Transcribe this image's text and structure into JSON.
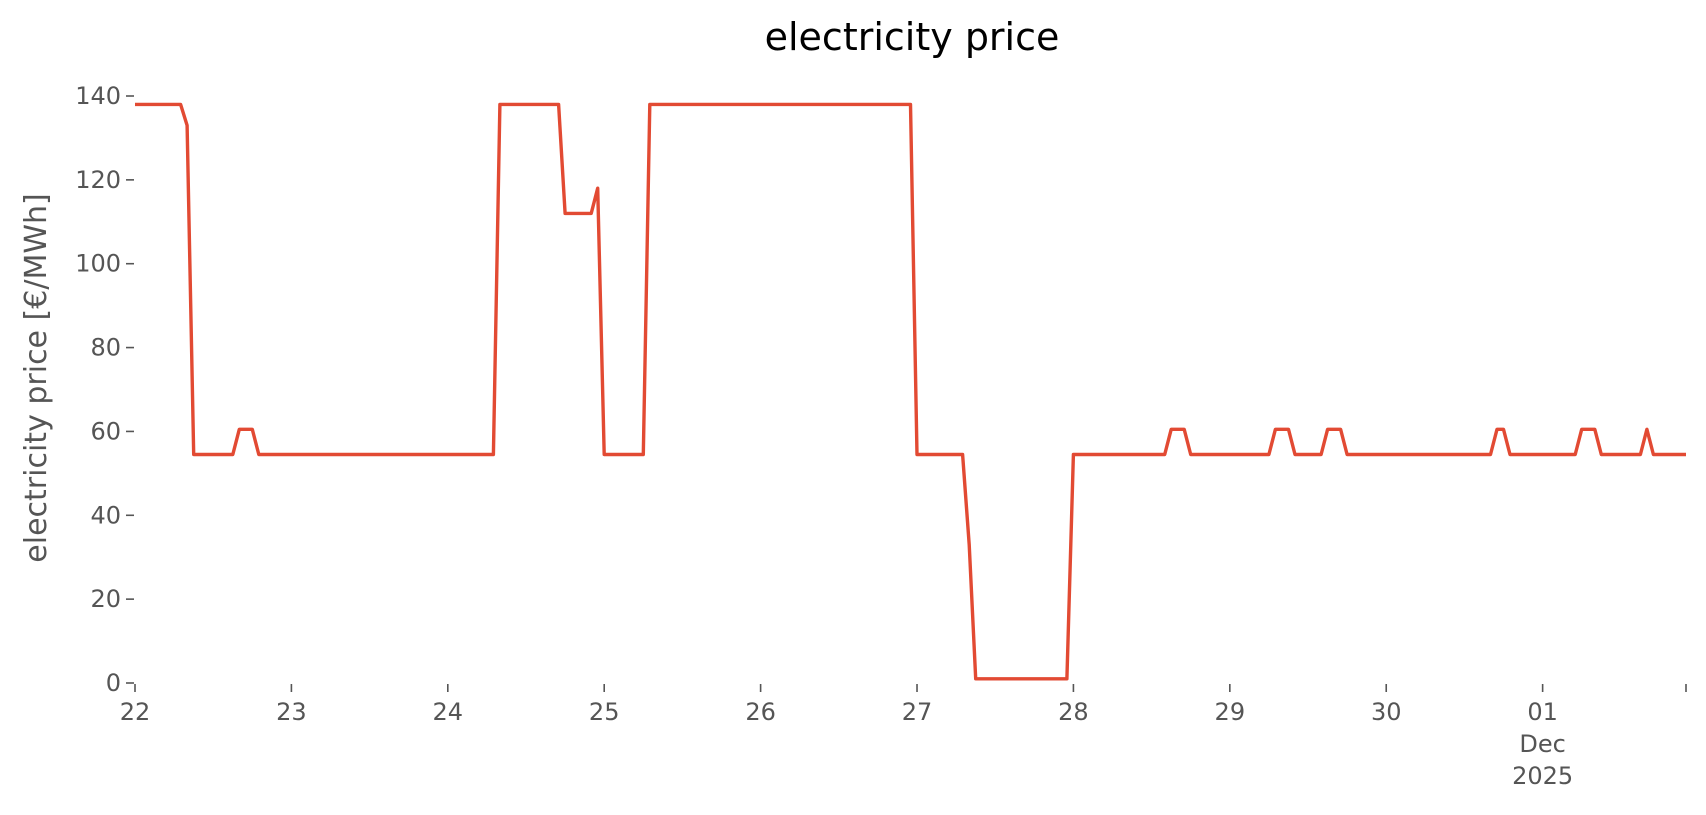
{
  "chart_data": {
    "type": "line",
    "title": "electricity price",
    "xlabel": "",
    "ylabel": "electricity price [€/MWh]",
    "ylim": [
      0,
      140
    ],
    "xlim": [
      "2025-11-22T00:00",
      "2025-12-01T22:00"
    ],
    "yticks": [
      0,
      20,
      40,
      60,
      80,
      100,
      120,
      140
    ],
    "xticks": [
      {
        "t": "2025-11-22T00:00",
        "lines": [
          "22"
        ]
      },
      {
        "t": "2025-11-23T00:00",
        "lines": [
          "23"
        ]
      },
      {
        "t": "2025-11-24T00:00",
        "lines": [
          "24"
        ]
      },
      {
        "t": "2025-11-25T00:00",
        "lines": [
          "25"
        ]
      },
      {
        "t": "2025-11-26T00:00",
        "lines": [
          "26"
        ]
      },
      {
        "t": "2025-11-27T00:00",
        "lines": [
          "27"
        ]
      },
      {
        "t": "2025-11-28T00:00",
        "lines": [
          "28"
        ]
      },
      {
        "t": "2025-11-29T00:00",
        "lines": [
          "29"
        ]
      },
      {
        "t": "2025-11-30T00:00",
        "lines": [
          "30"
        ]
      },
      {
        "t": "2025-12-01T00:00",
        "lines": [
          "01",
          "Dec",
          "2025"
        ]
      }
    ],
    "grid": false,
    "legend": "none",
    "series": [
      {
        "color": "#e24a33",
        "x": [
          "2025-11-22T00:00",
          "2025-11-22T07:00",
          "2025-11-22T08:00",
          "2025-11-22T09:00",
          "2025-11-22T15:00",
          "2025-11-22T16:00",
          "2025-11-22T18:00",
          "2025-11-22T19:00",
          "2025-11-24T07:00",
          "2025-11-24T08:00",
          "2025-11-24T17:00",
          "2025-11-24T18:00",
          "2025-11-24T22:00",
          "2025-11-24T23:00",
          "2025-11-25T00:00",
          "2025-11-25T06:00",
          "2025-11-25T07:00",
          "2025-11-26T23:00",
          "2025-11-27T00:00",
          "2025-11-27T07:00",
          "2025-11-27T08:00",
          "2025-11-27T09:00",
          "2025-11-27T23:00",
          "2025-11-28T00:00",
          "2025-11-28T14:00",
          "2025-11-28T15:00",
          "2025-11-28T17:00",
          "2025-11-28T18:00",
          "2025-11-29T06:00",
          "2025-11-29T07:00",
          "2025-11-29T09:00",
          "2025-11-29T10:00",
          "2025-11-29T14:00",
          "2025-11-29T15:00",
          "2025-11-29T17:00",
          "2025-11-29T18:00",
          "2025-11-30T16:00",
          "2025-11-30T17:00",
          "2025-11-30T18:00",
          "2025-11-30T19:00",
          "2025-12-01T05:00",
          "2025-12-01T06:00",
          "2025-12-01T08:00",
          "2025-12-01T09:00",
          "2025-12-01T15:00",
          "2025-12-01T16:00",
          "2025-12-01T17:00",
          "2025-12-01T22:00"
        ],
        "values": [
          138,
          138,
          133,
          54.5,
          54.5,
          60.5,
          60.5,
          54.5,
          54.5,
          138,
          138,
          112,
          112,
          118,
          54.5,
          54.5,
          138,
          138,
          54.5,
          54.5,
          33,
          1,
          1,
          54.5,
          54.5,
          60.5,
          60.5,
          54.5,
          54.5,
          60.5,
          60.5,
          54.5,
          54.5,
          60.5,
          60.5,
          54.5,
          54.5,
          60.5,
          60.5,
          54.5,
          54.5,
          60.5,
          60.5,
          54.5,
          54.5,
          60.5,
          54.5,
          54.5
        ]
      }
    ]
  }
}
